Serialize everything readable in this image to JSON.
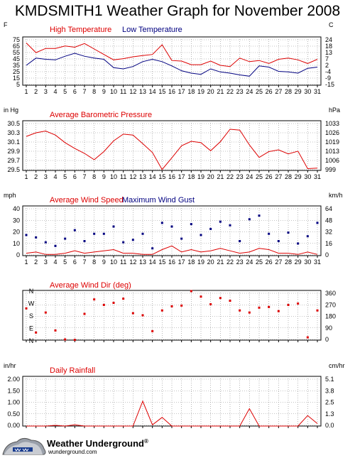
{
  "page": {
    "title": "KMDSMITH1 Weather Graph for November 2008"
  },
  "branding": {
    "name": "Weather Underground",
    "trademark": "®",
    "site": "wunderground.com"
  },
  "chart_data": [
    {
      "id": "temperature",
      "type": "line",
      "title_parts": [
        "High Temperature",
        "Low Temperature"
      ],
      "left_unit": "F",
      "right_unit": "C",
      "x": [
        1,
        2,
        3,
        4,
        5,
        6,
        7,
        8,
        9,
        10,
        11,
        12,
        13,
        14,
        15,
        16,
        17,
        18,
        19,
        20,
        21,
        22,
        23,
        24,
        25,
        26,
        27,
        28,
        29,
        30,
        31
      ],
      "ylim": [
        0,
        80
      ],
      "left_ticks": [
        "75",
        "65",
        "55",
        "45",
        "35",
        "25",
        "15",
        "5"
      ],
      "right_ticks": [
        "24",
        "18",
        "13",
        "7",
        "2",
        "-4",
        "-9",
        "-15"
      ],
      "series": [
        {
          "name": "High Temperature",
          "color": "#dd0000",
          "values": [
            70,
            54,
            61,
            61,
            65,
            63,
            69,
            60,
            51,
            42,
            44,
            47,
            49,
            51,
            67,
            41,
            40,
            34,
            34,
            40,
            33,
            31,
            45,
            39,
            41,
            36,
            43,
            45,
            42,
            36,
            43
          ]
        },
        {
          "name": "Low Temperature",
          "color": "#000080",
          "values": [
            33,
            45,
            43,
            42,
            48,
            53,
            48,
            45,
            43,
            29,
            27,
            31,
            39,
            43,
            39,
            32,
            24,
            20,
            18,
            27,
            22,
            20,
            17,
            15,
            32,
            30,
            23,
            22,
            20,
            28,
            30
          ]
        }
      ]
    },
    {
      "id": "pressure",
      "type": "line",
      "title_parts": [
        "Average Barometric Pressure"
      ],
      "left_unit": "in Hg",
      "right_unit": "hPa",
      "x": [
        1,
        2,
        3,
        4,
        5,
        6,
        7,
        8,
        9,
        10,
        11,
        12,
        13,
        14,
        15,
        16,
        17,
        18,
        19,
        20,
        21,
        22,
        23,
        24,
        25,
        26,
        27,
        28,
        29,
        30,
        31
      ],
      "ylim": [
        29.47,
        30.58
      ],
      "left_ticks": [
        "30.5",
        "30.3",
        "30.1",
        "29.9",
        "29.7",
        "29.5"
      ],
      "right_ticks": [
        "1033",
        "1026",
        "1019",
        "1013",
        "1006",
        "999"
      ],
      "series": [
        {
          "name": "Average Barometric Pressure",
          "color": "#dd0000",
          "values": [
            30.23,
            30.31,
            30.35,
            30.26,
            30.09,
            29.96,
            29.85,
            29.71,
            29.89,
            30.13,
            30.28,
            30.26,
            30.07,
            29.87,
            29.49,
            29.75,
            30.02,
            30.12,
            30.09,
            29.91,
            30.11,
            30.39,
            30.37,
            30.04,
            29.76,
            29.89,
            29.93,
            29.84,
            29.9,
            29.51,
            29.52
          ]
        }
      ]
    },
    {
      "id": "wind",
      "type": "line+scatter",
      "title_parts": [
        "Average Wind Speed",
        "Maximum Wind Gust"
      ],
      "left_unit": "mph",
      "right_unit": "km/h",
      "x": [
        1,
        2,
        3,
        4,
        5,
        6,
        7,
        8,
        9,
        10,
        11,
        12,
        13,
        14,
        15,
        16,
        17,
        18,
        19,
        20,
        21,
        22,
        23,
        24,
        25,
        26,
        27,
        28,
        29,
        30,
        31
      ],
      "ylim": [
        0,
        41
      ],
      "left_ticks": [
        "40",
        "30",
        "20",
        "10",
        "0"
      ],
      "right_ticks": [
        "64",
        "48",
        "32",
        "16",
        "0"
      ],
      "series": [
        {
          "name": "Average Wind Speed",
          "color": "#dd0000",
          "values": [
            2,
            3,
            1,
            1,
            2,
            4,
            2,
            3,
            4,
            5,
            2,
            2,
            1,
            1,
            5,
            8,
            3,
            5,
            3,
            4,
            6,
            4,
            2,
            3,
            6,
            5,
            2,
            2,
            1,
            3,
            1
          ]
        },
        {
          "name": "Maximum Wind Gust",
          "color": "#000080",
          "values": [
            17,
            15,
            11,
            8,
            14,
            21,
            12,
            18,
            18,
            24,
            11,
            13,
            18,
            6,
            27,
            24,
            14,
            26,
            17,
            22,
            28,
            25,
            12,
            30,
            33,
            18,
            12,
            19,
            10,
            16,
            27
          ]
        }
      ]
    },
    {
      "id": "wind_dir",
      "type": "scatter",
      "title_parts": [
        "Average Wind Dir (deg)"
      ],
      "right_unit": "",
      "compass_labels": [
        "N",
        "W",
        "S",
        "E",
        "N"
      ],
      "x": [
        1,
        2,
        3,
        4,
        5,
        6,
        7,
        8,
        9,
        10,
        11,
        12,
        13,
        14,
        15,
        16,
        17,
        18,
        19,
        20,
        21,
        22,
        23,
        24,
        25,
        26,
        27,
        28,
        29,
        30,
        31
      ],
      "ylim": [
        0,
        360
      ],
      "right_ticks": [
        "360",
        "270",
        "180",
        "90",
        "0"
      ],
      "series": [
        {
          "name": "Average Wind Dir (deg)",
          "color": "#dd0000",
          "values": [
            230,
            55,
            200,
            70,
            5,
            2,
            190,
            295,
            255,
            270,
            300,
            195,
            180,
            65,
            215,
            245,
            250,
            355,
            315,
            260,
            305,
            285,
            215,
            200,
            235,
            240,
            210,
            255,
            265,
            20,
            215
          ]
        }
      ]
    },
    {
      "id": "rainfall",
      "type": "line",
      "title_parts": [
        "Daily Rainfall"
      ],
      "left_unit": "in/hr",
      "right_unit": "cm/hr",
      "x": [
        1,
        2,
        3,
        4,
        5,
        6,
        7,
        8,
        9,
        10,
        11,
        12,
        13,
        14,
        15,
        16,
        17,
        18,
        19,
        20,
        21,
        22,
        23,
        24,
        25,
        26,
        27,
        28,
        29,
        30,
        31
      ],
      "ylim": [
        0,
        2.0
      ],
      "left_ticks": [
        "2.00",
        "1.50",
        "1.00",
        "0.50",
        "0.00"
      ],
      "right_ticks": [
        "5.1",
        "3.8",
        "2.5",
        "1.3",
        "0.0"
      ],
      "series": [
        {
          "name": "Daily Rainfall",
          "color": "#dd0000",
          "values": [
            0,
            0,
            0,
            0.03,
            0,
            0.05,
            0,
            0,
            0,
            0,
            0,
            0,
            1.0,
            0.05,
            0.35,
            0,
            0,
            0,
            0,
            0,
            0,
            0,
            0,
            0.7,
            0,
            0,
            0,
            0,
            0,
            0.42,
            0.1
          ]
        }
      ]
    }
  ]
}
